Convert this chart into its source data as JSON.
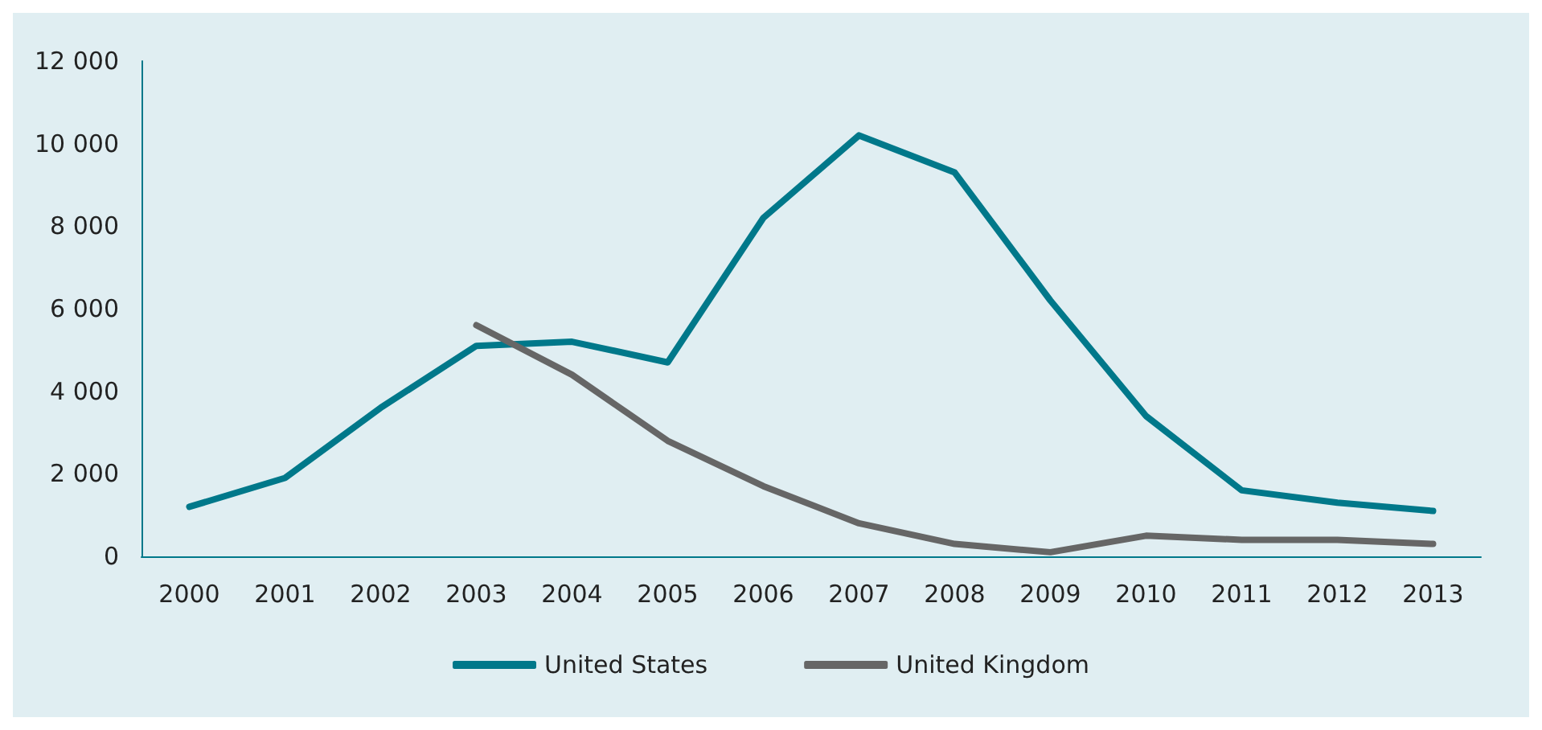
{
  "chart_data": {
    "type": "line",
    "categories": [
      "2000",
      "2001",
      "2002",
      "2003",
      "2004",
      "2005",
      "2006",
      "2007",
      "2008",
      "2009",
      "2010",
      "2011",
      "2012",
      "2013"
    ],
    "series": [
      {
        "name": "United States",
        "color": "#00788a",
        "values": [
          1200,
          1900,
          3600,
          5100,
          5200,
          4700,
          8200,
          10200,
          9300,
          6200,
          3400,
          1600,
          1300,
          1100
        ]
      },
      {
        "name": "United Kingdom",
        "color": "#666666",
        "values": [
          null,
          null,
          null,
          5600,
          4400,
          2800,
          1700,
          800,
          300,
          100,
          500,
          400,
          400,
          300
        ]
      }
    ],
    "ylim": [
      0,
      12000
    ],
    "yticks": [
      {
        "value": 0,
        "label": "0"
      },
      {
        "value": 2000,
        "label": "2 000"
      },
      {
        "value": 4000,
        "label": "4 000"
      },
      {
        "value": 6000,
        "label": "6 000"
      },
      {
        "value": 8000,
        "label": "8 000"
      },
      {
        "value": 10000,
        "label": "10 000"
      },
      {
        "value": 12000,
        "label": "12 000"
      }
    ],
    "grid": false,
    "legend": "bottom",
    "marker": "none",
    "line_style": "solid"
  }
}
